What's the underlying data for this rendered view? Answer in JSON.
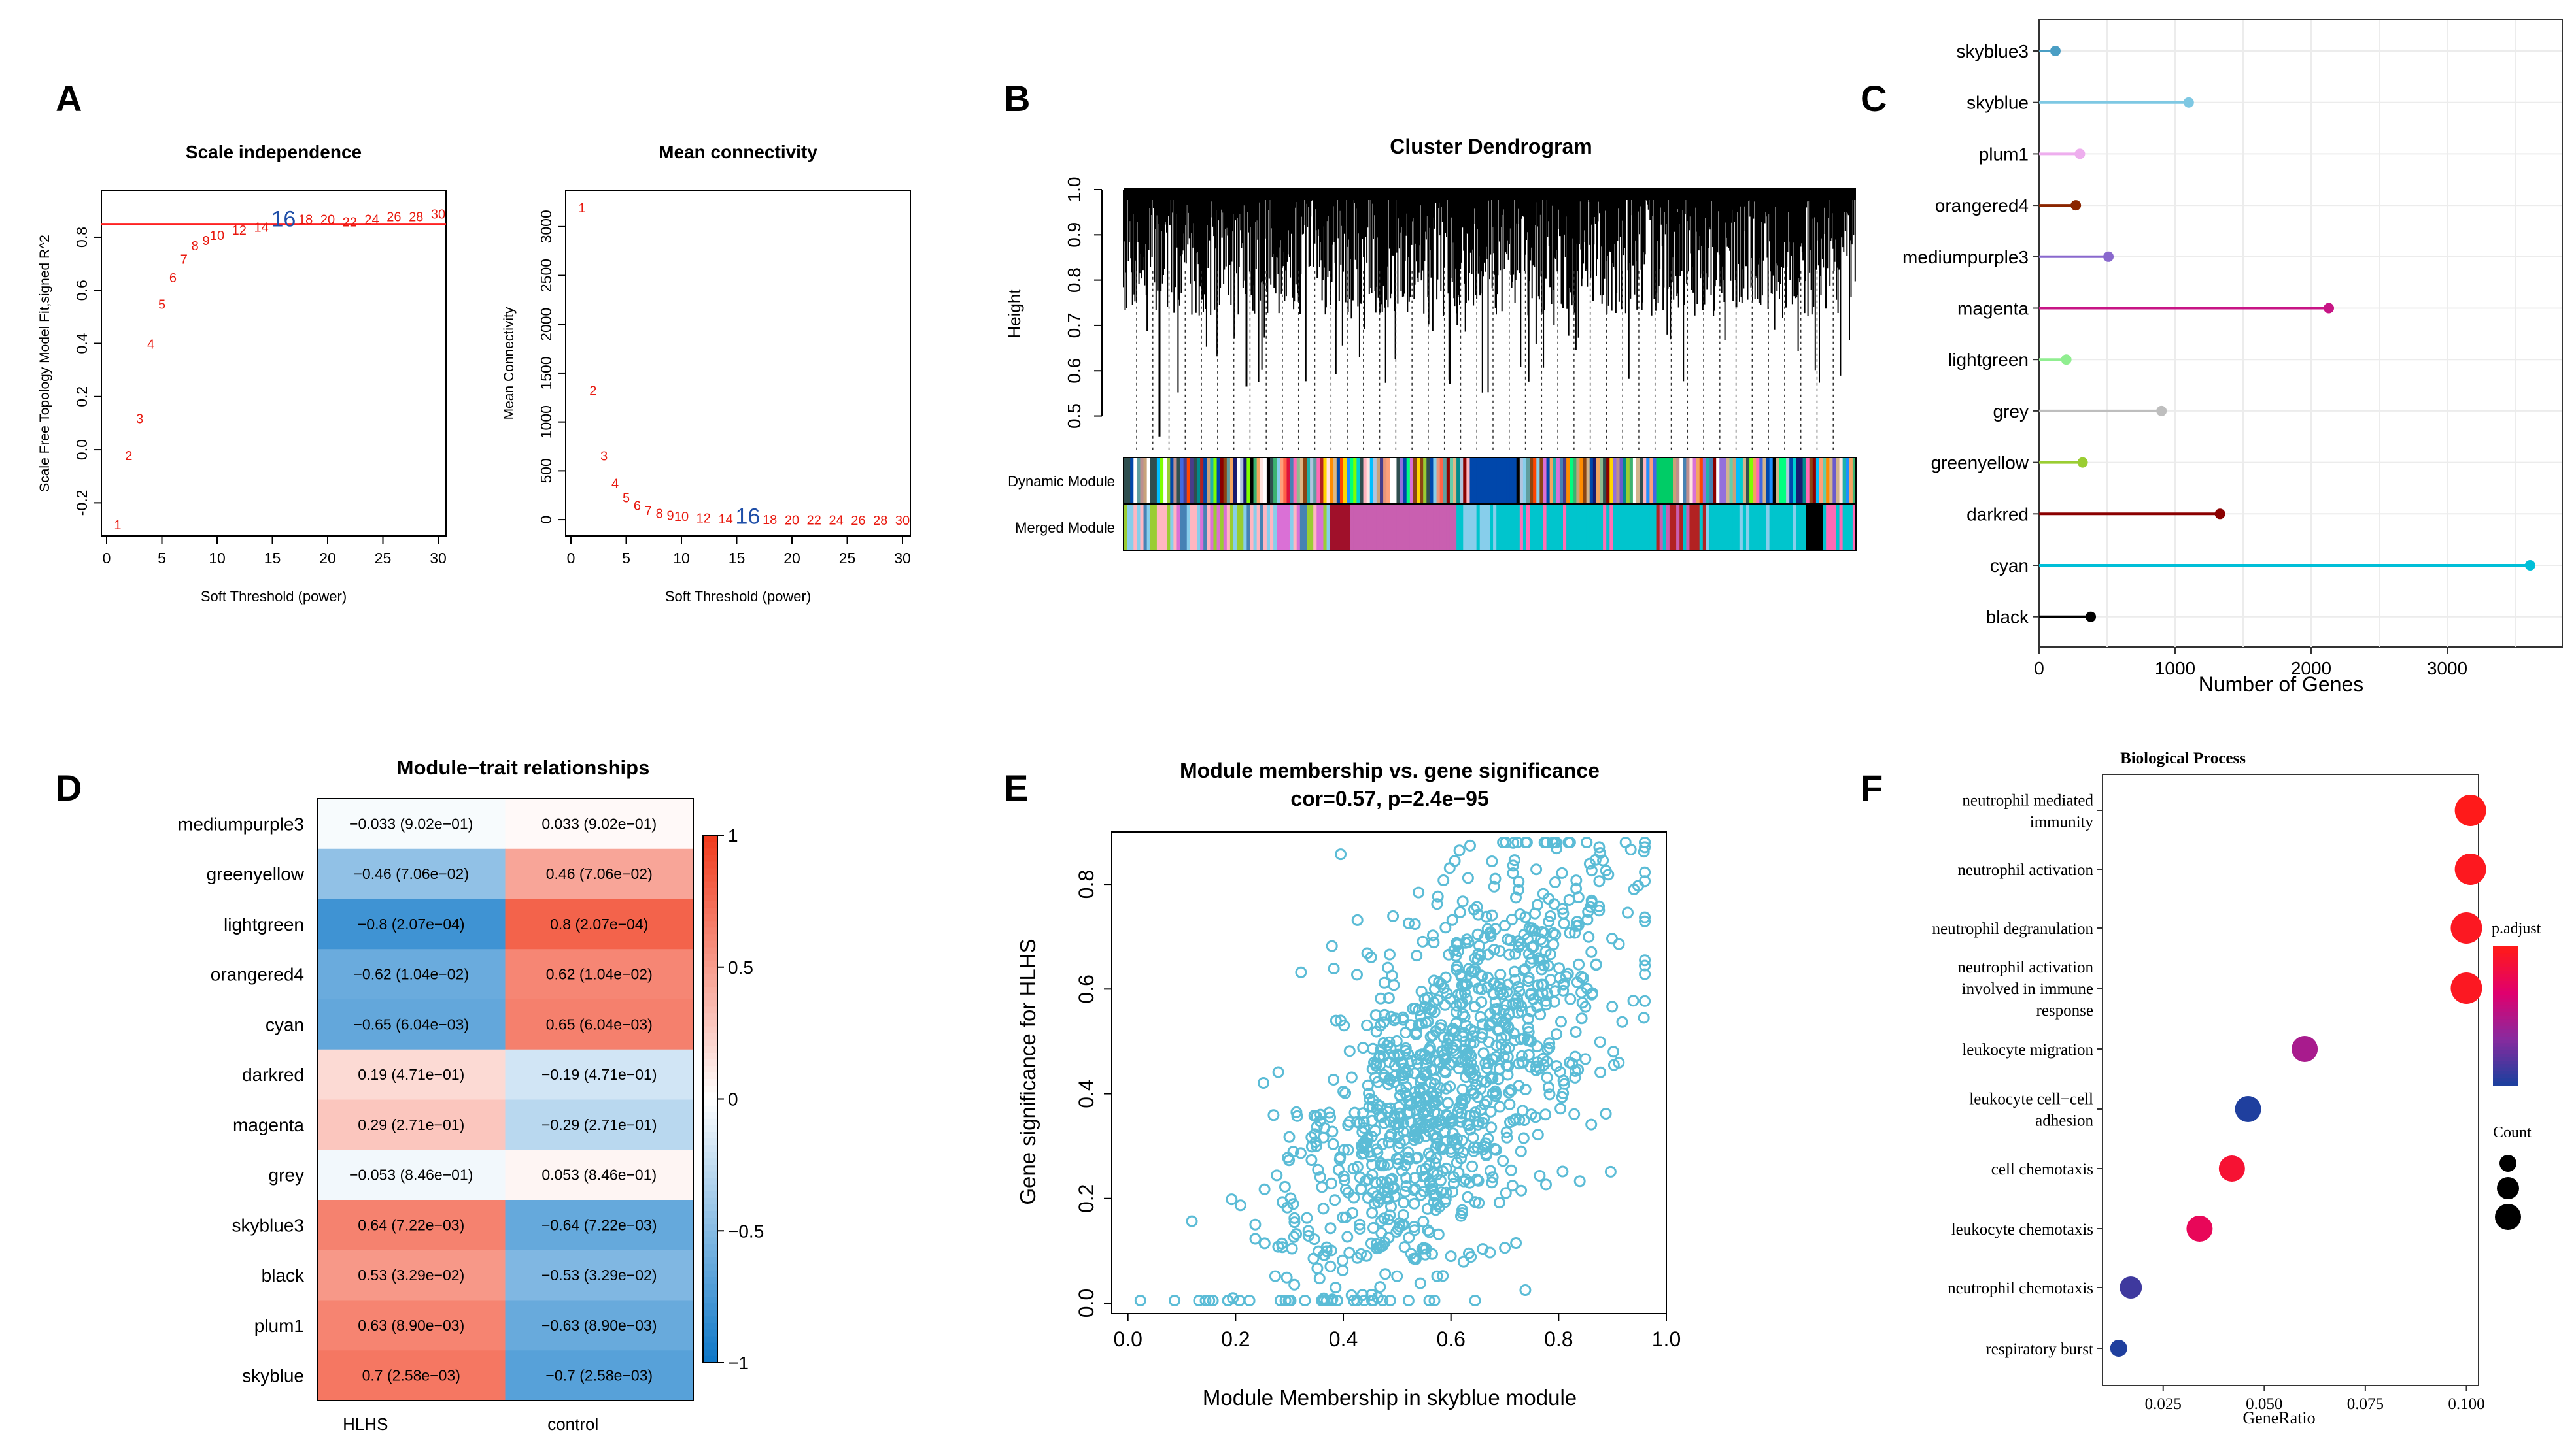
{
  "panels": {
    "A": "A",
    "B": "B",
    "C": "C",
    "D": "D",
    "E": "E",
    "F": "F"
  },
  "chart_data": [
    {
      "id": "A1",
      "type": "scatter",
      "title": "Scale independence",
      "xlabel": "Soft Threshold (power)",
      "ylabel": "Scale Free Topology Model Fit,signed R^2",
      "xlim": [
        0,
        30
      ],
      "ylim": [
        -0.3,
        0.95
      ],
      "xticks": [
        "0",
        "5",
        "10",
        "15",
        "20",
        "25",
        "30"
      ],
      "xtick_values": [
        0,
        5,
        10,
        15,
        20,
        25,
        30
      ],
      "yticks": [
        "-0.2",
        "0.0",
        "0.2",
        "0.4",
        "0.6",
        "0.8"
      ],
      "ytick_values": [
        -0.2,
        0.0,
        0.2,
        0.4,
        0.6,
        0.8
      ],
      "hline": 0.85,
      "highlight_power": 16,
      "points": [
        {
          "x": 1,
          "y": -0.28
        },
        {
          "x": 2,
          "y": -0.02
        },
        {
          "x": 3,
          "y": 0.12
        },
        {
          "x": 4,
          "y": 0.4
        },
        {
          "x": 5,
          "y": 0.55
        },
        {
          "x": 6,
          "y": 0.65
        },
        {
          "x": 7,
          "y": 0.72
        },
        {
          "x": 8,
          "y": 0.77
        },
        {
          "x": 9,
          "y": 0.79
        },
        {
          "x": 10,
          "y": 0.81
        },
        {
          "x": 12,
          "y": 0.83
        },
        {
          "x": 14,
          "y": 0.84
        },
        {
          "x": 16,
          "y": 0.86
        },
        {
          "x": 18,
          "y": 0.87
        },
        {
          "x": 20,
          "y": 0.87
        },
        {
          "x": 22,
          "y": 0.86
        },
        {
          "x": 24,
          "y": 0.87
        },
        {
          "x": 26,
          "y": 0.88
        },
        {
          "x": 28,
          "y": 0.88
        },
        {
          "x": 30,
          "y": 0.89
        }
      ]
    },
    {
      "id": "A2",
      "type": "scatter",
      "title": "Mean connectivity",
      "xlabel": "Soft Threshold (power)",
      "ylabel": "Mean Connectivity",
      "xlim": [
        0,
        30
      ],
      "ylim": [
        -100,
        3300
      ],
      "xticks": [
        "0",
        "5",
        "10",
        "15",
        "20",
        "25",
        "30"
      ],
      "xtick_values": [
        0,
        5,
        10,
        15,
        20,
        25,
        30
      ],
      "yticks": [
        "0",
        "500",
        "1000",
        "1500",
        "2000",
        "2500",
        "3000"
      ],
      "ytick_values": [
        0,
        500,
        1000,
        1500,
        2000,
        2500,
        3000
      ],
      "highlight_power": 16,
      "points": [
        {
          "x": 1,
          "y": 3200
        },
        {
          "x": 2,
          "y": 1330
        },
        {
          "x": 3,
          "y": 660
        },
        {
          "x": 4,
          "y": 380
        },
        {
          "x": 5,
          "y": 230
        },
        {
          "x": 6,
          "y": 150
        },
        {
          "x": 7,
          "y": 100
        },
        {
          "x": 8,
          "y": 70
        },
        {
          "x": 9,
          "y": 50
        },
        {
          "x": 10,
          "y": 40
        },
        {
          "x": 12,
          "y": 25
        },
        {
          "x": 14,
          "y": 15
        },
        {
          "x": 16,
          "y": 10
        },
        {
          "x": 18,
          "y": 7
        },
        {
          "x": 20,
          "y": 5
        },
        {
          "x": 22,
          "y": 4
        },
        {
          "x": 24,
          "y": 3
        },
        {
          "x": 26,
          "y": 2
        },
        {
          "x": 28,
          "y": 2
        },
        {
          "x": 30,
          "y": 1
        }
      ]
    },
    {
      "id": "B",
      "type": "dendrogram",
      "title": "Cluster Dendrogram",
      "ylabel": "Height",
      "ylim": [
        0.42,
        1.0
      ],
      "yticks": [
        "0.5",
        "0.6",
        "0.7",
        "0.8",
        "0.9",
        "1.0"
      ],
      "ytick_values": [
        0.5,
        0.6,
        0.7,
        0.8,
        0.9,
        1.0
      ],
      "row_labels": [
        "Dynamic Module",
        "Merged Module"
      ],
      "dynamic_colors": [
        "#c8a27a",
        "#6a5acd",
        "#d2b48c",
        "#3cb371",
        "#ff8c00",
        "#9acd32",
        "#2e8b57",
        "#ffe4e1",
        "#4682b4",
        "#ffb6c1",
        "#ffd700",
        "#8b0000",
        "#2f4f4f",
        "#ff69b4",
        "#20b2aa",
        "#ffffff",
        "#b22222",
        "#5f9ea0",
        "#87ceeb",
        "#191970",
        "#ff4500",
        "#66cdaa",
        "#da70d6",
        "#1e90ff",
        "#8b4513",
        "#7fff00",
        "#dc143c",
        "#00ced1",
        "#0047ab",
        "#0047ab",
        "#bc8f8f",
        "#e9967a",
        "#9370db",
        "#00bfff",
        "#f4a460",
        "#008b8b",
        "#ff6347",
        "#00ff7f",
        "#4169e1",
        "#deb887",
        "#2f4f4f",
        "#ffa07a",
        "#8fbc8f",
        "#000000",
        "#483d8b",
        "#b0c4de",
        "#ffffff"
      ],
      "merged_colors": [
        "#87ceeb",
        "#87ceeb",
        "#da70d6",
        "#9acd32",
        "#4682b4",
        "#87ceeb",
        "#ffb6c1",
        "#8b0000",
        "#c71585",
        "#c71585",
        "#c71585",
        "#da70d6",
        "#00c5cd",
        "#00c5cd",
        "#87ceeb",
        "#00c5cd",
        "#00c5cd",
        "#00c5cd",
        "#00c5cd",
        "#00c5cd",
        "#00c5cd",
        "#b22222",
        "#87ceeb",
        "#00c5cd",
        "#00c5cd",
        "#00c5cd",
        "#ffb6c1",
        "#87ceeb",
        "#00c5cd",
        "#000000",
        "#ff69b4",
        "#00c5cd"
      ]
    },
    {
      "id": "C",
      "type": "lollipop",
      "xlabel": "Number of Genes",
      "xlim": [
        0,
        3750
      ],
      "xticks": [
        "0",
        "1000",
        "2000",
        "3000"
      ],
      "xtick_values": [
        0,
        1000,
        2000,
        3000
      ],
      "categories": [
        "skyblue3",
        "skyblue",
        "plum1",
        "orangered4",
        "mediumpurple3",
        "magenta",
        "lightgreen",
        "grey",
        "greenyellow",
        "darkred",
        "cyan",
        "black"
      ],
      "values": [
        120,
        1100,
        300,
        270,
        510,
        2130,
        200,
        900,
        320,
        1330,
        3610,
        380
      ],
      "colors": [
        "#4a9ec4",
        "#7ec8e3",
        "#eeaeee",
        "#8b2500",
        "#8968cd",
        "#c71585",
        "#90ee90",
        "#bebebe",
        "#9acd32",
        "#8b0000",
        "#00bfd8",
        "#000000"
      ]
    },
    {
      "id": "D",
      "type": "heatmap",
      "title": "Module−trait relationships",
      "rows": [
        "mediumpurple3",
        "greenyellow",
        "lightgreen",
        "orangered4",
        "cyan",
        "darkred",
        "magenta",
        "grey",
        "skyblue3",
        "black",
        "plum1",
        "skyblue"
      ],
      "columns": [
        "HLHS",
        "control"
      ],
      "values": [
        [
          -0.033,
          0.033
        ],
        [
          -0.46,
          0.46
        ],
        [
          -0.8,
          0.8
        ],
        [
          -0.62,
          0.62
        ],
        [
          -0.65,
          0.65
        ],
        [
          0.19,
          -0.19
        ],
        [
          0.29,
          -0.29
        ],
        [
          -0.053,
          0.053
        ],
        [
          0.64,
          -0.64
        ],
        [
          0.53,
          -0.53
        ],
        [
          0.63,
          -0.63
        ],
        [
          0.7,
          -0.7
        ]
      ],
      "cell_labels": [
        [
          "−0.033 (9.02e−01)",
          "0.033 (9.02e−01)"
        ],
        [
          "−0.46 (7.06e−02)",
          "0.46 (7.06e−02)"
        ],
        [
          "−0.8 (2.07e−04)",
          "0.8 (2.07e−04)"
        ],
        [
          "−0.62 (1.04e−02)",
          "0.62 (1.04e−02)"
        ],
        [
          "−0.65 (6.04e−03)",
          "0.65 (6.04e−03)"
        ],
        [
          "0.19 (4.71e−01)",
          "−0.19 (4.71e−01)"
        ],
        [
          "0.29 (2.71e−01)",
          "−0.29 (2.71e−01)"
        ],
        [
          "−0.053 (8.46e−01)",
          "0.053 (8.46e−01)"
        ],
        [
          "0.64 (7.22e−03)",
          "−0.64 (7.22e−03)"
        ],
        [
          "0.53 (3.29e−02)",
          "−0.53 (3.29e−02)"
        ],
        [
          "0.63 (8.90e−03)",
          "−0.63 (8.90e−03)"
        ],
        [
          "0.7 (2.58e−03)",
          "−0.7 (2.58e−03)"
        ]
      ],
      "colorbar_ticks": [
        "1",
        "0.5",
        "0",
        "−0.5",
        "−1"
      ],
      "colorbar_tick_values": [
        1,
        0.5,
        0,
        -0.5,
        -1
      ],
      "vmin": -1,
      "vmax": 1
    },
    {
      "id": "E",
      "type": "scatter",
      "title": "Module membership vs. gene significance",
      "subtitle": "cor=0.57, p=2.4e−95",
      "xlabel": "Module Membership in skyblue module",
      "ylabel": "Gene significance for HLHS",
      "xlim": [
        -0.03,
        1.0
      ],
      "ylim": [
        -0.02,
        0.9
      ],
      "xticks": [
        "0.0",
        "0.2",
        "0.4",
        "0.6",
        "0.8",
        "1.0"
      ],
      "xtick_values": [
        0.0,
        0.2,
        0.4,
        0.6,
        0.8,
        1.0
      ],
      "yticks": [
        "0.0",
        "0.2",
        "0.4",
        "0.6",
        "0.8"
      ],
      "ytick_values": [
        0.0,
        0.2,
        0.4,
        0.6,
        0.8
      ],
      "n_points": 1100,
      "point_color": "#5bbcd6",
      "cor": 0.57,
      "seed": 20240
    },
    {
      "id": "F",
      "type": "scatter",
      "title": "Biological Process",
      "xlabel": "GeneRatio",
      "xlim": [
        0.01,
        0.103
      ],
      "xticks": [
        "0.025",
        "0.050",
        "0.075",
        "0.100"
      ],
      "xtick_values": [
        0.025,
        0.05,
        0.075,
        0.1
      ],
      "terms": [
        {
          "lines": [
            "neutrophil mediated",
            "immunity"
          ],
          "ratio": 0.101,
          "padj_pos": 0.0,
          "count_level": 3
        },
        {
          "lines": [
            "neutrophil activation"
          ],
          "ratio": 0.101,
          "padj_pos": 0.02,
          "count_level": 3
        },
        {
          "lines": [
            "neutrophil degranulation"
          ],
          "ratio": 0.1,
          "padj_pos": 0.03,
          "count_level": 3
        },
        {
          "lines": [
            "neutrophil activation",
            "involved in immune",
            "response"
          ],
          "ratio": 0.1,
          "padj_pos": 0.03,
          "count_level": 3
        },
        {
          "lines": [
            "leukocyte migration"
          ],
          "ratio": 0.06,
          "padj_pos": 0.55,
          "count_level": 2
        },
        {
          "lines": [
            "leukocyte cell−cell",
            "adhesion"
          ],
          "ratio": 0.046,
          "padj_pos": 1.0,
          "count_level": 2
        },
        {
          "lines": [
            "cell chemotaxis"
          ],
          "ratio": 0.042,
          "padj_pos": 0.1,
          "count_level": 2
        },
        {
          "lines": [
            "leukocyte chemotaxis"
          ],
          "ratio": 0.034,
          "padj_pos": 0.25,
          "count_level": 2
        },
        {
          "lines": [
            "neutrophil chemotaxis"
          ],
          "ratio": 0.017,
          "padj_pos": 0.9,
          "count_level": 1
        },
        {
          "lines": [
            "respiratory burst"
          ],
          "ratio": 0.014,
          "padj_pos": 1.0,
          "count_level": 0
        }
      ],
      "legend_padj_title": "p.adjust",
      "legend_count_title": "Count",
      "padj_colors": [
        "#ff1a1a",
        "#e0006e",
        "#8a2a9e",
        "#1f3f9e"
      ]
    }
  ]
}
